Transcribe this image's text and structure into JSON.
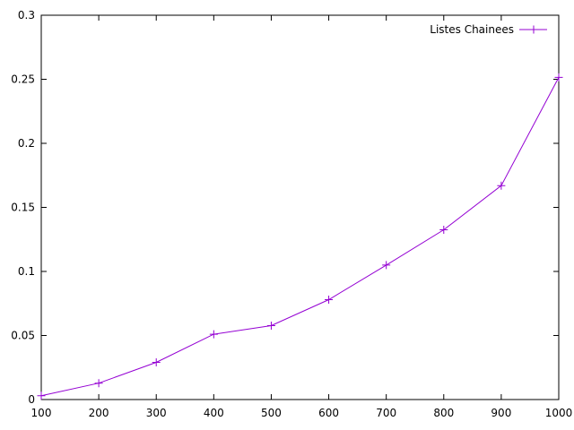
{
  "chart_data": {
    "type": "line",
    "title": "",
    "xlabel": "",
    "ylabel": "",
    "xlim": [
      100,
      1000
    ],
    "ylim": [
      0,
      0.3
    ],
    "x_ticks": [
      "100",
      "200",
      "300",
      "400",
      "500",
      "600",
      "700",
      "800",
      "900",
      "1000"
    ],
    "y_ticks": [
      "0",
      "0.05",
      "0.1",
      "0.15",
      "0.2",
      "0.25",
      "0.3"
    ],
    "grid": false,
    "legend_position": "top-right",
    "series": [
      {
        "name": "Listes Chainees",
        "color": "#9400d3",
        "marker": "plus",
        "x": [
          100,
          200,
          300,
          400,
          500,
          600,
          700,
          800,
          900,
          1000
        ],
        "y": [
          0.003,
          0.0128,
          0.029,
          0.051,
          0.0577,
          0.078,
          0.105,
          0.1325,
          0.167,
          0.2515
        ]
      }
    ]
  }
}
